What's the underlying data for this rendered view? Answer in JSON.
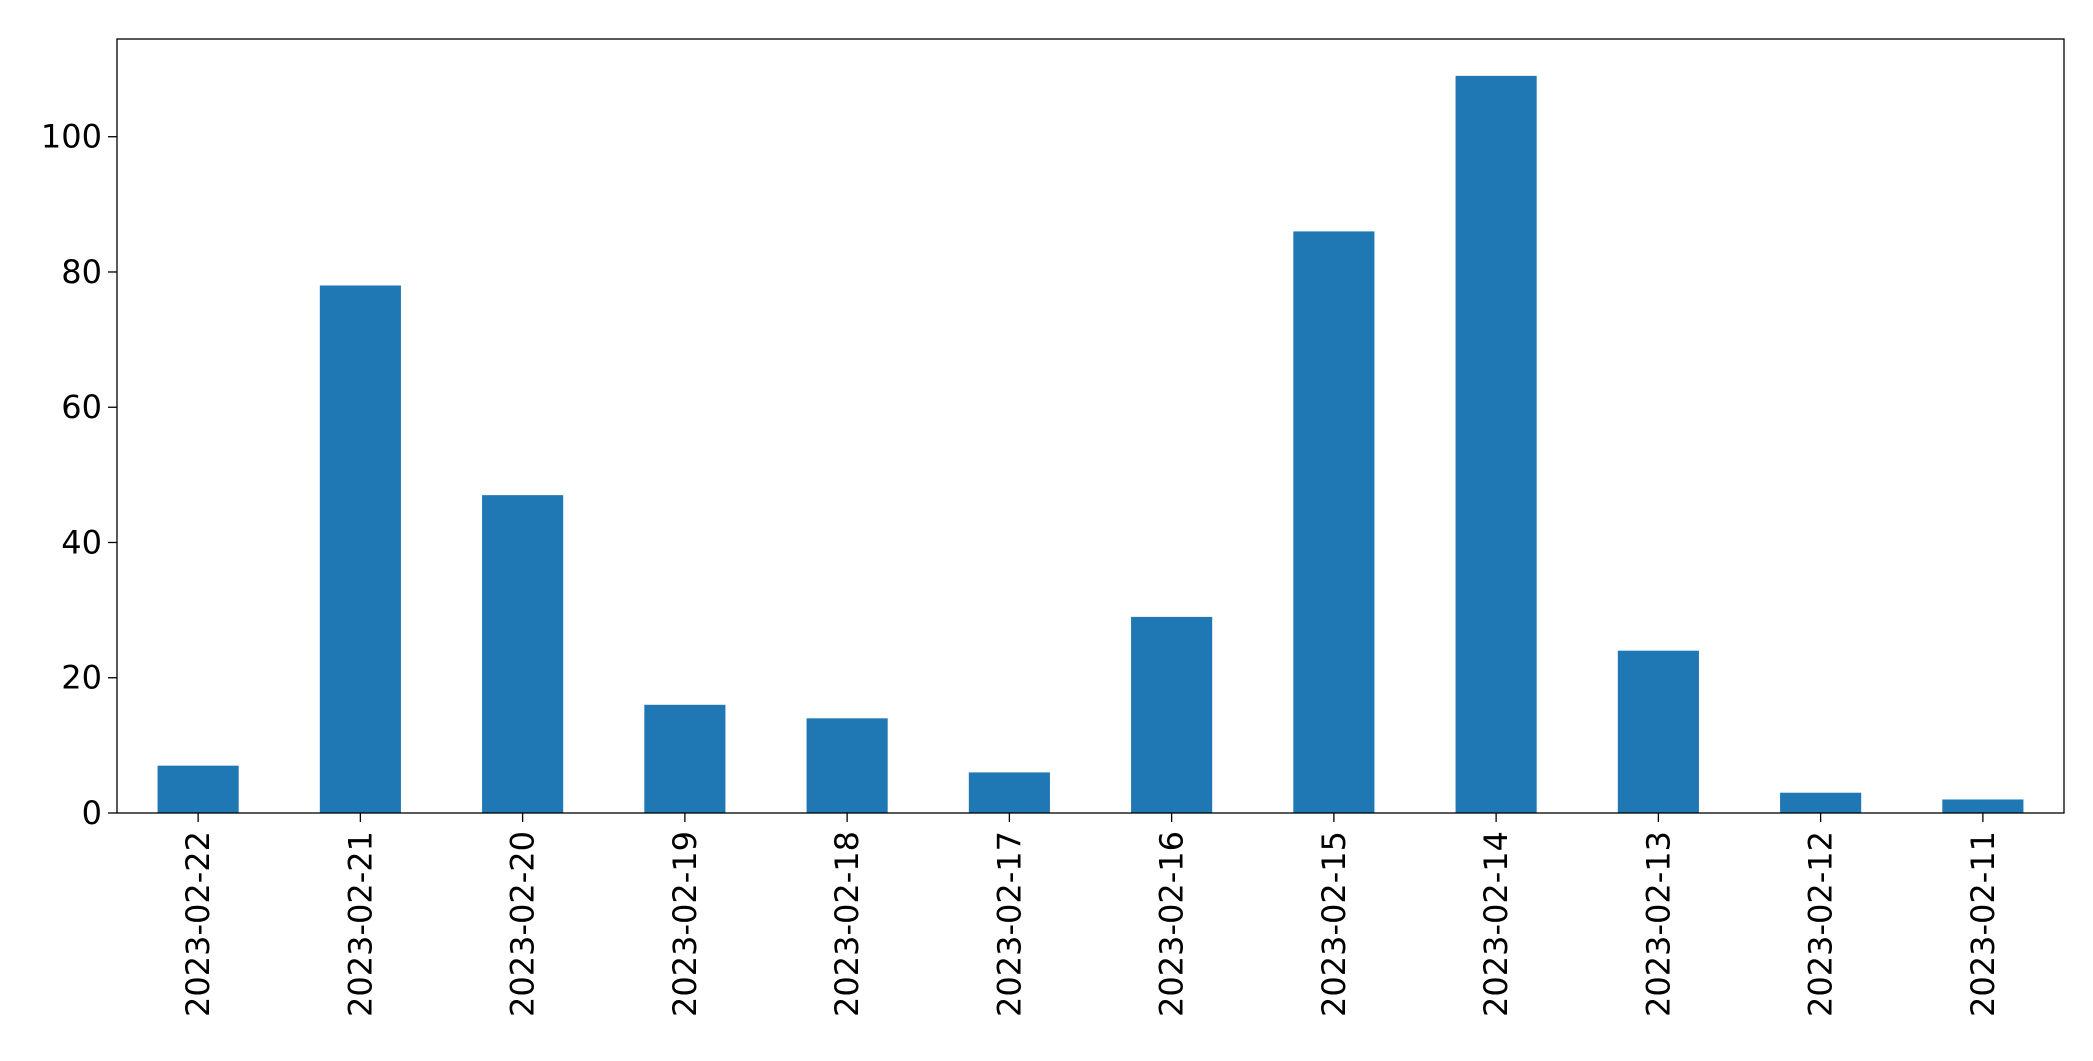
{
  "chart_data": {
    "type": "bar",
    "categories": [
      "2023-02-22",
      "2023-02-21",
      "2023-02-20",
      "2023-02-19",
      "2023-02-18",
      "2023-02-17",
      "2023-02-16",
      "2023-02-15",
      "2023-02-14",
      "2023-02-13",
      "2023-02-12",
      "2023-02-11"
    ],
    "values": [
      7,
      78,
      47,
      16,
      14,
      6,
      29,
      86,
      109,
      24,
      3,
      2
    ],
    "color": "#1f77b4",
    "ylim": [
      0,
      114.45
    ],
    "yticks": [
      0,
      20,
      40,
      60,
      80,
      100
    ],
    "grid": false
  }
}
